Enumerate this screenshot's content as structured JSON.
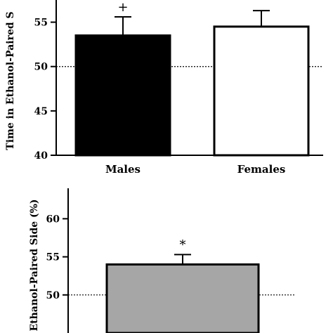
{
  "chart_data": [
    {
      "type": "bar",
      "title": "",
      "ylabel": "Time in Ethanol-Paired S",
      "xlabel": "",
      "categories": [
        "Males",
        "Females"
      ],
      "values": [
        53.5,
        54.5
      ],
      "errors": [
        2.1,
        1.8
      ],
      "significance": [
        "+",
        ""
      ],
      "bar_colors": [
        "#000000",
        "#ffffff"
      ],
      "ylim": [
        40,
        57.5
      ],
      "yticks": [
        "40",
        "45",
        "50",
        "55"
      ],
      "reference_line": 50
    },
    {
      "type": "bar",
      "title": "",
      "ylabel": "n Ethanol-Paired Side (%)",
      "xlabel": "",
      "categories": [
        ""
      ],
      "values": [
        54.0
      ],
      "errors": [
        1.3
      ],
      "significance": [
        "*"
      ],
      "bar_colors": [
        "#a6a6a6"
      ],
      "ylim": [
        45,
        64
      ],
      "yticks": [
        "50",
        "55",
        "60"
      ],
      "reference_line": 50
    }
  ]
}
